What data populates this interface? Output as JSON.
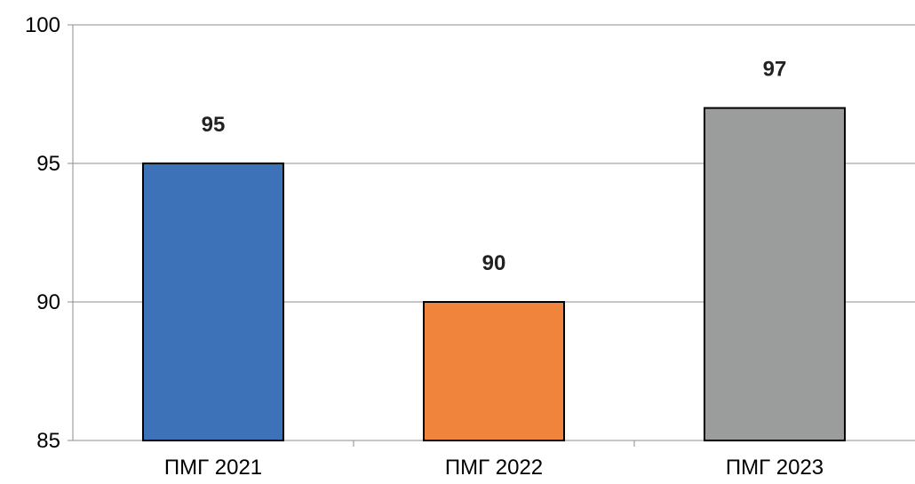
{
  "chart_data": {
    "type": "bar",
    "title": "",
    "xlabel": "",
    "ylabel": "",
    "categories": [
      "ПМГ 2021",
      "ПМГ 2022",
      "ПМГ 2023"
    ],
    "values": [
      95,
      90,
      97
    ],
    "data_labels": [
      "95",
      "90",
      "97"
    ],
    "bar_colors": [
      "#3d72b9",
      "#f0843c",
      "#9a9d9c"
    ],
    "ylim": [
      85,
      100
    ],
    "yticks": [
      85,
      90,
      95,
      100
    ],
    "ytick_labels": [
      "85",
      "90",
      "95",
      "100"
    ],
    "grid": true,
    "legend": "none"
  }
}
